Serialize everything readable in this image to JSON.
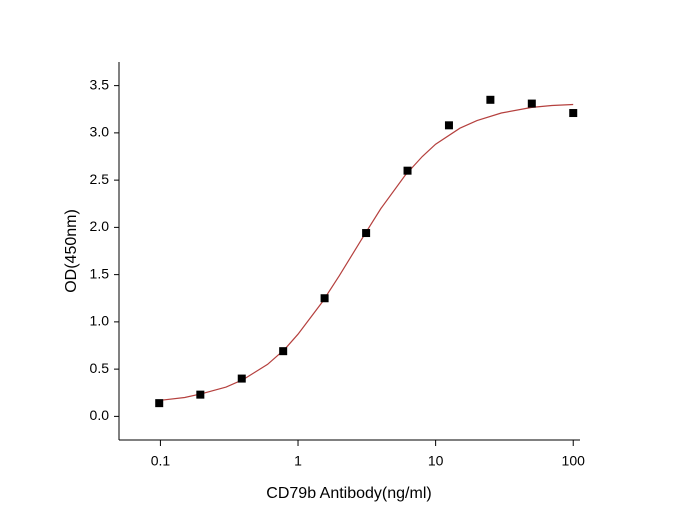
{
  "chart_data": {
    "type": "scatter",
    "x_label": "CD79b Antibody(ng/ml)",
    "y_label": "OD(450nm)",
    "x_scale": "log",
    "x": [
      0.098,
      0.195,
      0.39,
      0.78,
      1.56,
      3.125,
      6.25,
      12.5,
      25,
      50,
      100
    ],
    "values": [
      0.14,
      0.23,
      0.4,
      0.69,
      1.25,
      1.94,
      2.6,
      3.08,
      3.35,
      3.31,
      3.21
    ],
    "color": "#000000",
    "curve": {
      "color": "#b5403e",
      "x": [
        0.1,
        0.15,
        0.2,
        0.3,
        0.4,
        0.6,
        0.8,
        1,
        1.5,
        2,
        3,
        4,
        6,
        8,
        10,
        15,
        20,
        30,
        50,
        70,
        100
      ],
      "values": [
        0.17,
        0.2,
        0.24,
        0.31,
        0.39,
        0.55,
        0.71,
        0.87,
        1.21,
        1.49,
        1.91,
        2.2,
        2.55,
        2.75,
        2.88,
        3.05,
        3.13,
        3.21,
        3.27,
        3.29,
        3.3
      ]
    },
    "xlim": [
      0.05,
      112
    ],
    "ylim": [
      -0.25,
      3.75
    ],
    "xticks": [
      0.1,
      1,
      10,
      100
    ],
    "yticks": [
      {
        "value": 0,
        "label": "0.0"
      },
      0.5,
      {
        "value": 1,
        "label": "1.0"
      },
      1.5,
      {
        "value": 2,
        "label": "2.0"
      },
      2.5,
      {
        "value": 3,
        "label": "3.0"
      },
      3.5
    ]
  }
}
